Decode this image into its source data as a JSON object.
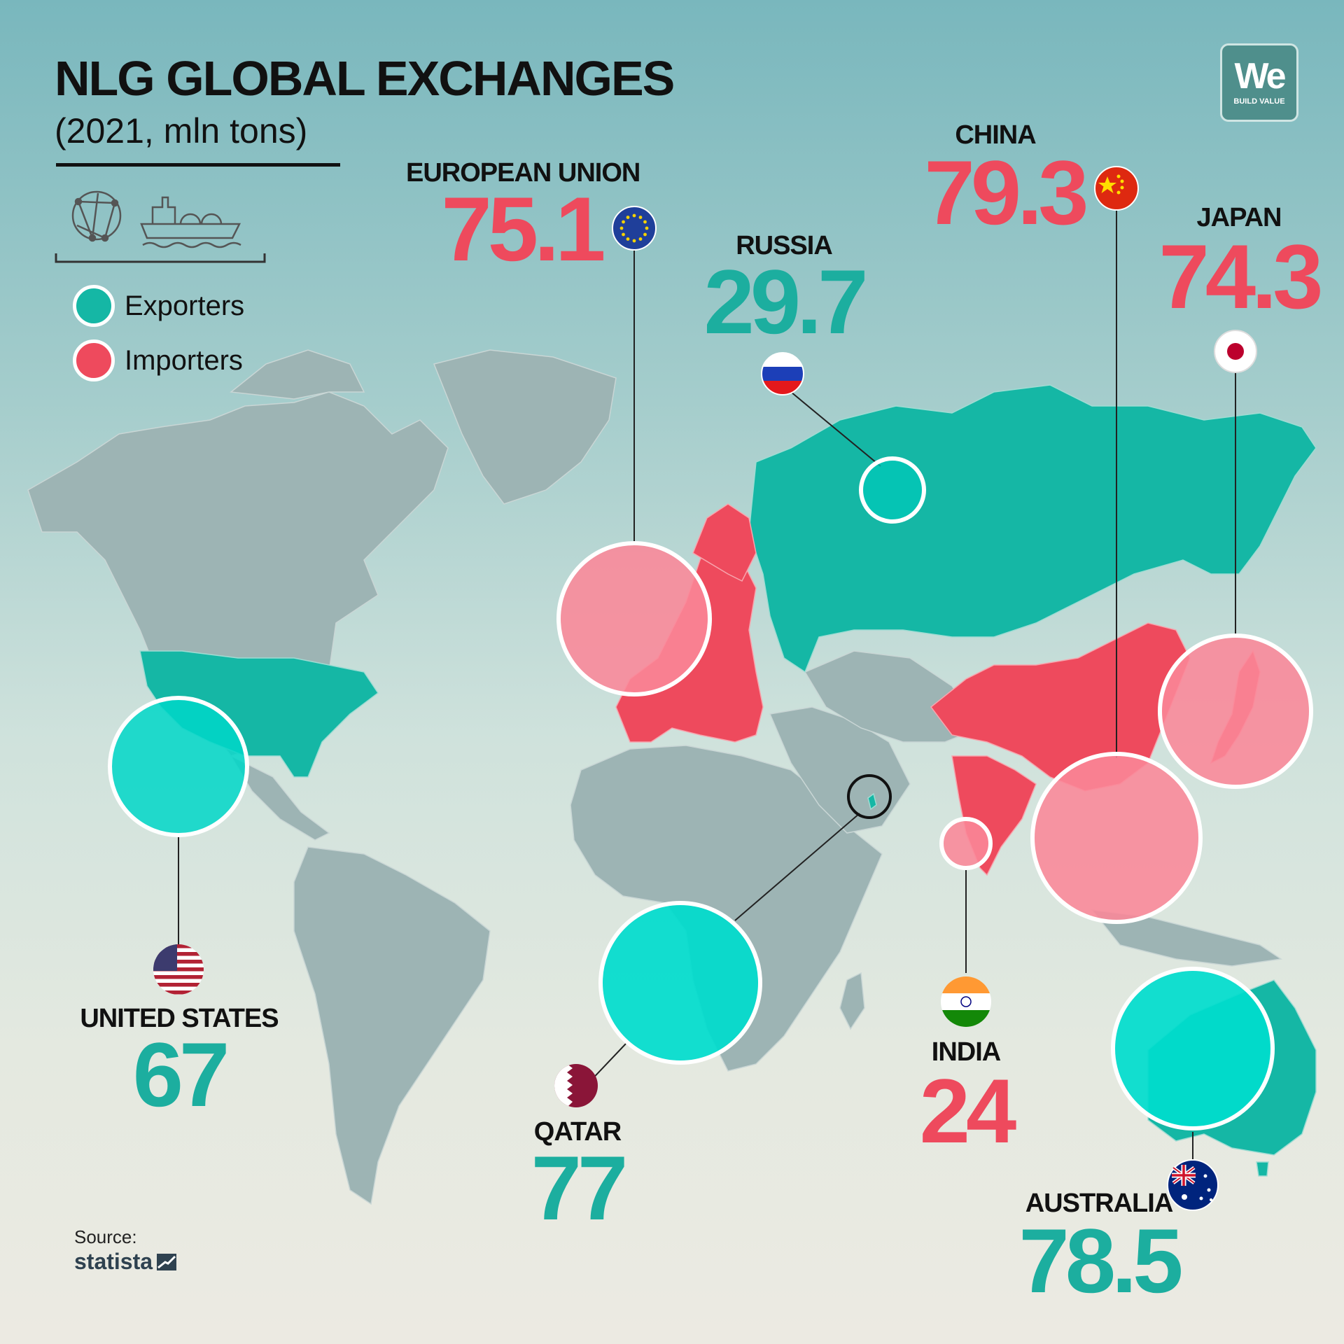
{
  "title": "NLG GLOBAL EXCHANGES",
  "subtitle": "(2021, mln tons)",
  "logo": {
    "main": "We",
    "sub": "BUILD VALUE"
  },
  "legend": [
    {
      "label": "Exporters",
      "color": "#15b7a5"
    },
    {
      "label": "Importers",
      "color": "#ee4a5d"
    }
  ],
  "colors": {
    "exporter": "#15b7a5",
    "exporter_value": "#1cae9f",
    "importer": "#ee4a5d",
    "importer_value": "#ee4a5d",
    "land": "#9db4b4",
    "land_dark": "#86a4a4"
  },
  "countries": {
    "european_union": {
      "label": "EUROPEAN UNION",
      "value": "75.1",
      "role": "importer",
      "flag": "eu-flag-icon"
    },
    "china": {
      "label": "CHINA",
      "value": "79.3",
      "role": "importer",
      "flag": "china-flag-icon"
    },
    "russia": {
      "label": "RUSSIA",
      "value": "29.7",
      "role": "exporter",
      "flag": "russia-flag-icon"
    },
    "japan": {
      "label": "JAPAN",
      "value": "74.3",
      "role": "importer",
      "flag": "japan-flag-icon"
    },
    "united_states": {
      "label": "UNITED STATES",
      "value": "67",
      "role": "exporter",
      "flag": "usa-flag-icon"
    },
    "qatar": {
      "label": "QATAR",
      "value": "77",
      "role": "exporter",
      "flag": "qatar-flag-icon"
    },
    "india": {
      "label": "INDIA",
      "value": "24",
      "role": "importer",
      "flag": "india-flag-icon"
    },
    "australia": {
      "label": "AUSTRALIA",
      "value": "78.5",
      "role": "exporter",
      "flag": "australia-flag-icon"
    }
  },
  "icons": [
    "globe-network-icon",
    "lng-tanker-ship-icon"
  ],
  "source": {
    "label": "Source:",
    "name": "statista"
  }
}
